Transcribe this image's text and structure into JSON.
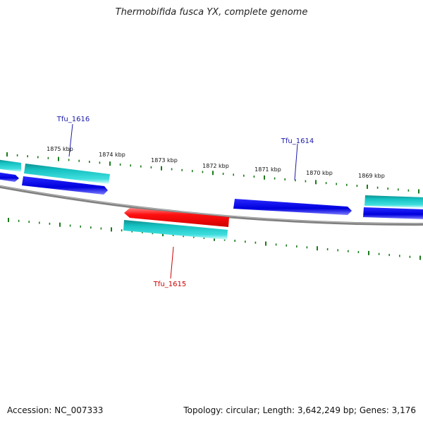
{
  "title": "Thermobifida fusca YX, complete genome",
  "footer": {
    "accession": "Accession: NC_007333",
    "summary": "Topology: circular; Length: 3,642,249 bp; Genes: 3,176"
  },
  "colors": {
    "backbone": "#808080",
    "tick": "#1a7a1a",
    "fwd_gene": "#0000dd",
    "rev_gene": "#e00000",
    "rna": "#16c2c2",
    "label_blue": "#1a1aaa",
    "label_red": "#cc0000"
  },
  "kbp_labels": [
    "1875 kbp",
    "1874 kbp",
    "1873 kbp",
    "1872 kbp",
    "1871 kbp",
    "1870 kbp",
    "1869 kbp"
  ],
  "gene_labels": {
    "tfu_1616": "Tfu_1616",
    "tfu_1614": "Tfu_1614",
    "tfu_1615": "Tfu_1615"
  }
}
